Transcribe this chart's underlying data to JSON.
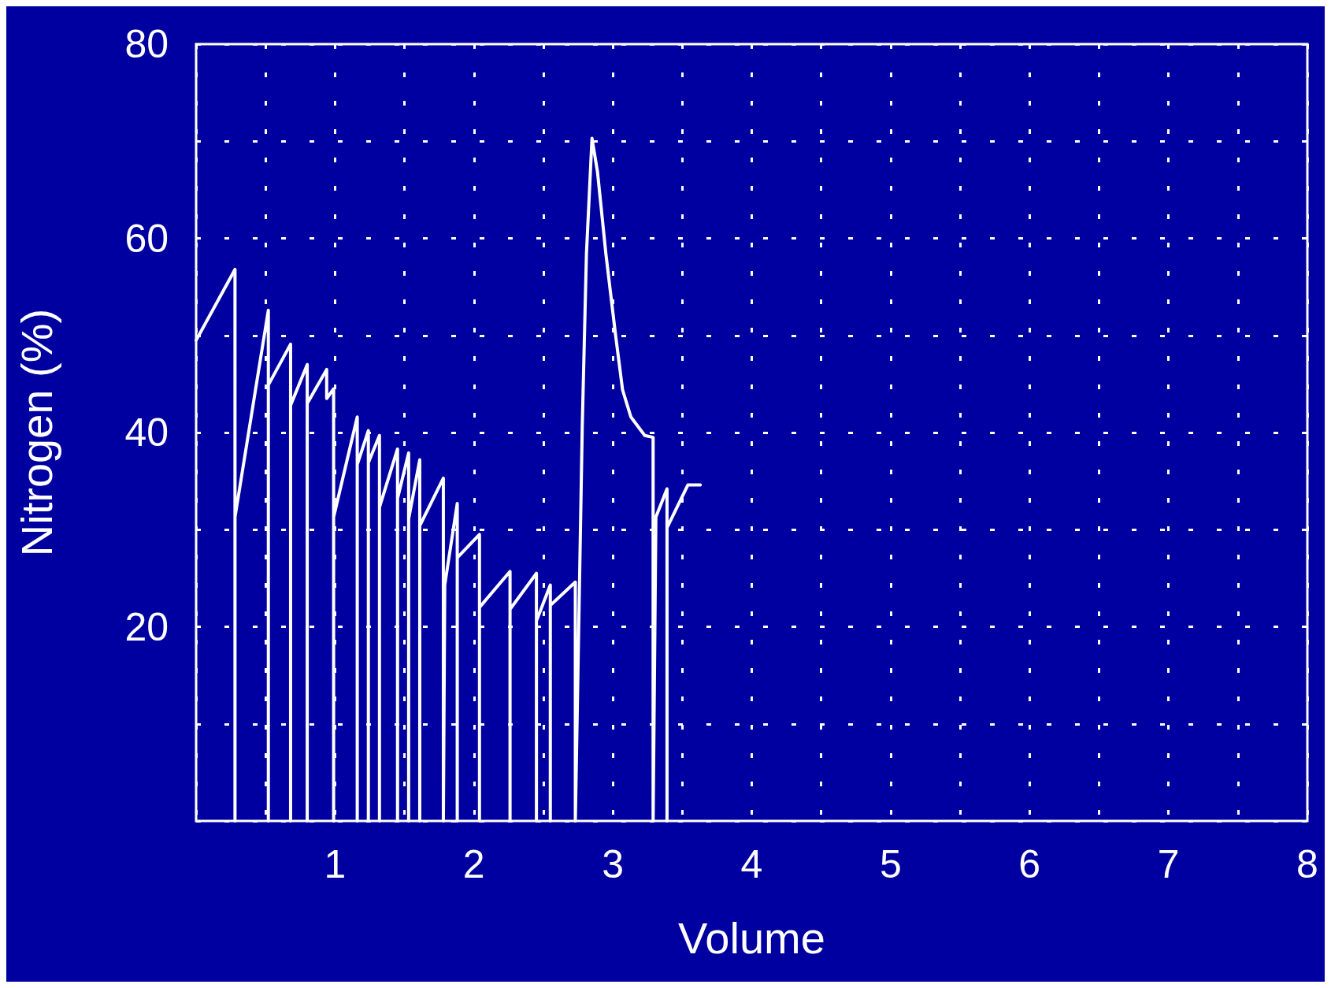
{
  "chart_data": {
    "type": "line",
    "xlabel": "Volume",
    "ylabel": "Nitrogen (%)",
    "xlim": [
      0,
      8
    ],
    "ylim": [
      0,
      80
    ],
    "xticks": [
      {
        "value": 0,
        "label": null
      },
      {
        "value": 0.5,
        "label": null
      },
      1,
      {
        "value": 1.5,
        "label": null
      },
      2,
      {
        "value": 2.5,
        "label": null
      },
      3,
      {
        "value": 3.5,
        "label": null
      },
      4,
      {
        "value": 4.5,
        "label": null
      },
      5,
      {
        "value": 5.5,
        "label": null
      },
      6,
      {
        "value": 6.5,
        "label": null
      },
      7,
      {
        "value": 7.5,
        "label": null
      },
      8
    ],
    "yticks": [
      {
        "value": 0,
        "label": null
      },
      {
        "value": 10,
        "label": null
      },
      20,
      {
        "value": 30,
        "label": null
      },
      40,
      {
        "value": 50,
        "label": null
      },
      60,
      {
        "value": 70,
        "label": null
      },
      80
    ],
    "grid": true,
    "marker": "none",
    "line_style": "solid",
    "series": [
      {
        "color": "#ffffff",
        "x": [
          0,
          0.28,
          0.28,
          0.28,
          0.52,
          0.52,
          0.52,
          0.68,
          0.68,
          0.68,
          0.8,
          0.8,
          0.8,
          0.94,
          0.94,
          0.99,
          0.99,
          0.99,
          1.16,
          1.16,
          1.16,
          1.24,
          1.24,
          1.24,
          1.32,
          1.32,
          1.32,
          1.45,
          1.45,
          1.45,
          1.53,
          1.53,
          1.53,
          1.61,
          1.61,
          1.61,
          1.78,
          1.78,
          1.79,
          1.88,
          1.88,
          1.88,
          2.04,
          2.04,
          2.04,
          2.26,
          2.26,
          2.26,
          2.45,
          2.45,
          2.45,
          2.55,
          2.55,
          2.55,
          2.73,
          2.73,
          2.78,
          2.81,
          2.85,
          2.89,
          2.95,
          3.02,
          3.07,
          3.13,
          3.23,
          3.29,
          3.29,
          3.31,
          3.39,
          3.39,
          3.39,
          3.54,
          3.63
        ],
        "values": [
          49.5,
          56.8,
          0,
          31.3,
          52.6,
          0,
          44.9,
          49.1,
          0,
          42.8,
          47,
          0,
          43,
          46.5,
          43.5,
          44.5,
          0,
          31.3,
          41.6,
          0,
          36.7,
          40.2,
          0,
          36.9,
          39.7,
          0,
          32.3,
          38.3,
          0,
          33.2,
          37.9,
          0,
          31.1,
          37.2,
          0,
          30.4,
          35.3,
          0,
          24.3,
          32.7,
          0,
          27.1,
          29.5,
          0,
          22,
          25.7,
          0,
          21.8,
          25.5,
          0,
          20.6,
          24.3,
          0,
          22.2,
          24.6,
          0,
          40.7,
          58.4,
          70.3,
          66.8,
          58.4,
          50,
          44.4,
          41.6,
          39.7,
          39.5,
          0,
          31.3,
          34.2,
          0,
          30.2,
          34.6,
          34.6
        ]
      }
    ]
  }
}
